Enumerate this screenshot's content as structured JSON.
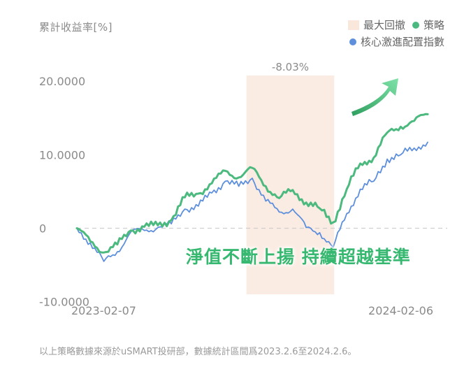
{
  "chart_data": {
    "type": "line",
    "ylabel": "累計收益率[%]",
    "yticks": [
      "20.0000",
      "10.0000",
      "0",
      "-10.0000"
    ],
    "ytick_values": [
      20,
      10,
      0,
      -10
    ],
    "ylim": [
      -10.5,
      22
    ],
    "xticks": [
      "2023-02-07",
      "2024-02-06"
    ],
    "xlim": [
      "2023-02-07",
      "2024-02-06"
    ],
    "grid": false,
    "zero_line": "dashed",
    "legend_position": "top-right",
    "drawdown": {
      "label": "最大回撤",
      "value_label": "-8.03%",
      "start": "2023-08-02",
      "end": "2023-11-01",
      "color": "#fbece3"
    },
    "series": [
      {
        "name": "策略",
        "color": "#4cb97e",
        "x": [
          "2023-02-07",
          "2023-02-21",
          "2023-03-07",
          "2023-03-21",
          "2023-04-04",
          "2023-04-18",
          "2023-05-02",
          "2023-05-16",
          "2023-05-30",
          "2023-06-13",
          "2023-06-27",
          "2023-07-11",
          "2023-07-25",
          "2023-08-08",
          "2023-08-22",
          "2023-09-05",
          "2023-09-19",
          "2023-10-03",
          "2023-10-17",
          "2023-10-31",
          "2023-11-14",
          "2023-11-28",
          "2023-12-12",
          "2023-12-26",
          "2024-01-09",
          "2024-01-23",
          "2024-02-06"
        ],
        "values": [
          0,
          -1.8,
          -3.3,
          -2.2,
          -0.3,
          0.2,
          0.4,
          1.1,
          4.2,
          4.7,
          6.1,
          7.8,
          6.9,
          8.2,
          5.7,
          4.1,
          5.2,
          3.5,
          2.7,
          0.8,
          5.3,
          8.8,
          9.6,
          13.0,
          13.8,
          14.6,
          15.5
        ]
      },
      {
        "name": "核心激進配置指數",
        "color": "#5d8fdc",
        "x": [
          "2023-02-07",
          "2023-02-21",
          "2023-03-07",
          "2023-03-21",
          "2023-04-04",
          "2023-04-18",
          "2023-05-02",
          "2023-05-16",
          "2023-05-30",
          "2023-06-13",
          "2023-06-27",
          "2023-07-11",
          "2023-07-25",
          "2023-08-08",
          "2023-08-22",
          "2023-09-05",
          "2023-09-19",
          "2023-10-03",
          "2023-10-17",
          "2023-10-31",
          "2023-11-14",
          "2023-11-28",
          "2023-12-12",
          "2023-12-26",
          "2024-01-09",
          "2024-01-23",
          "2024-02-06"
        ],
        "values": [
          0,
          -2.0,
          -4.5,
          -3.2,
          -0.5,
          -0.3,
          0.1,
          0.6,
          2.6,
          3.0,
          4.8,
          6.4,
          5.7,
          6.8,
          3.7,
          2.2,
          2.6,
          0.1,
          -0.6,
          -2.6,
          2.0,
          5.3,
          6.4,
          9.4,
          10.0,
          10.9,
          11.7
        ]
      }
    ]
  },
  "callout": {
    "text": "淨值不斷上揚 持續超越基準"
  },
  "footnote": "以上策略數據來源於uSMART投研部，數據統計區間爲2023.2.6至2024.2.6。"
}
